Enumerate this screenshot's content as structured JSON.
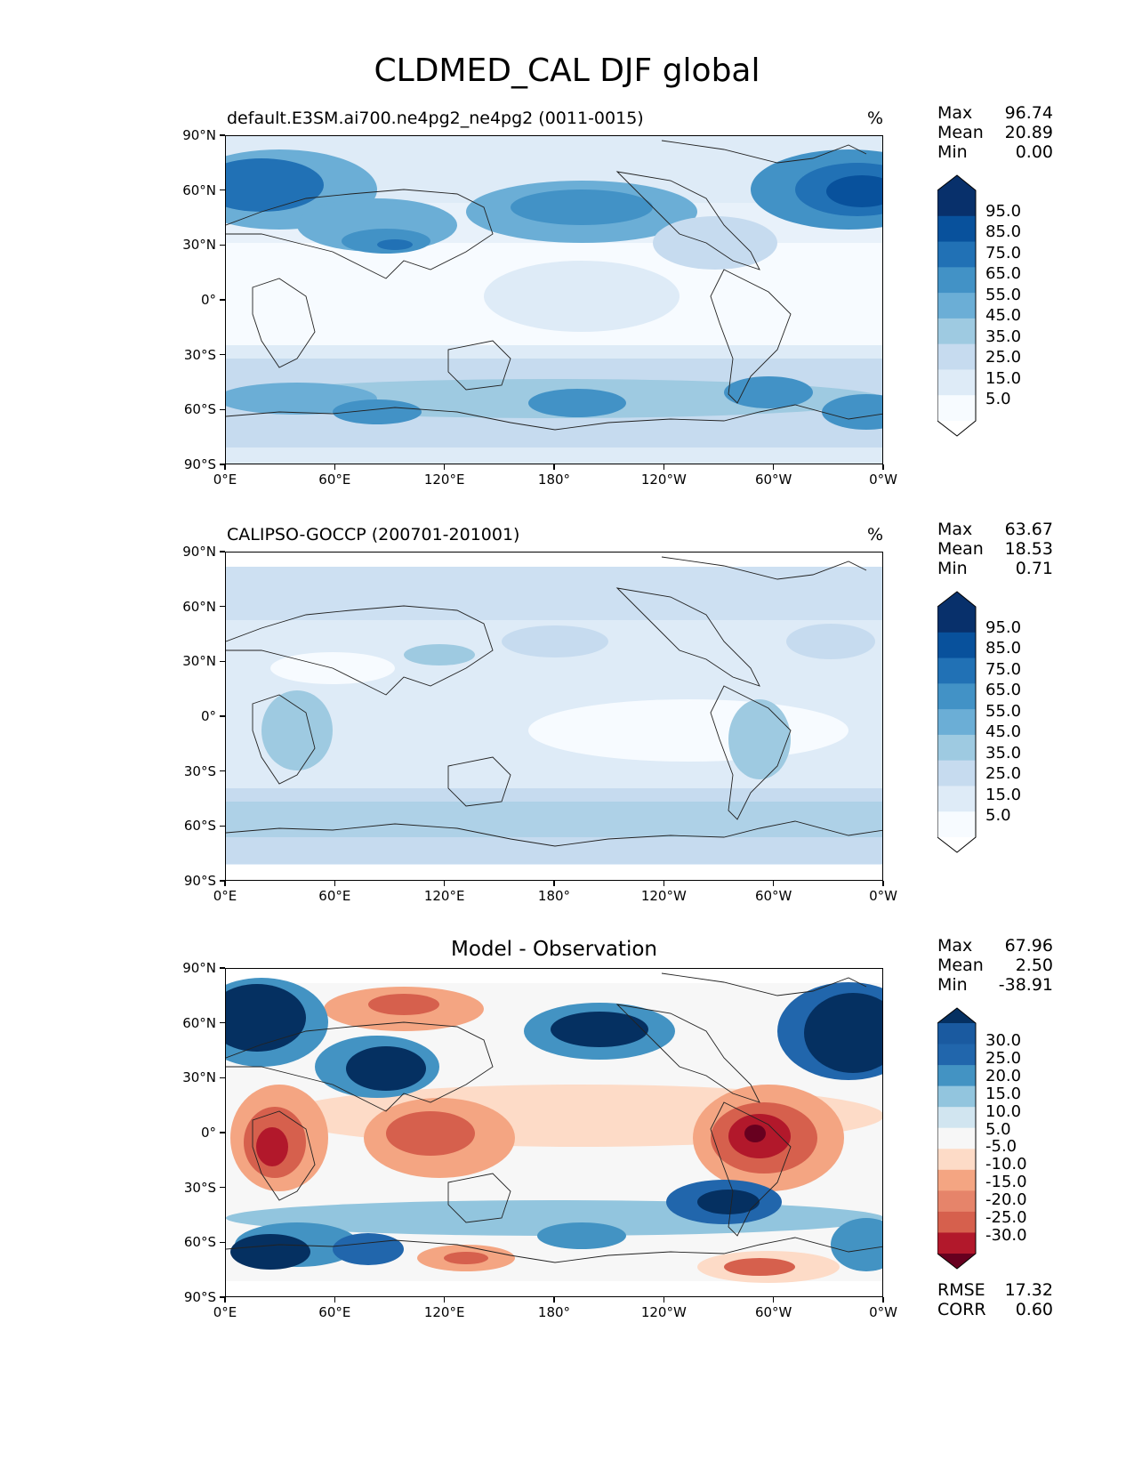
{
  "title": "CLDMED_CAL DJF global",
  "panels": [
    {
      "name": "model",
      "label": "default.E3SM.ai700.ne4pg2_ne4pg2 (0011-0015)",
      "unit": "%",
      "stats": [
        {
          "k": "Max",
          "v": "96.74"
        },
        {
          "k": "Mean",
          "v": "20.89"
        },
        {
          "k": "Min",
          "v": "0.00"
        }
      ],
      "colorbar_labels": [
        "95.0",
        "85.0",
        "75.0",
        "65.0",
        "55.0",
        "45.0",
        "35.0",
        "25.0",
        "15.0",
        "5.0"
      ]
    },
    {
      "name": "observation",
      "label": "CALIPSO-GOCCP (200701-201001)",
      "unit": "%",
      "stats": [
        {
          "k": "Max",
          "v": "63.67"
        },
        {
          "k": "Mean",
          "v": "18.53"
        },
        {
          "k": "Min",
          "v": "0.71"
        }
      ],
      "colorbar_labels": [
        "95.0",
        "85.0",
        "75.0",
        "65.0",
        "55.0",
        "45.0",
        "35.0",
        "25.0",
        "15.0",
        "5.0"
      ]
    },
    {
      "name": "difference",
      "label": "Model - Observation",
      "unit": "",
      "stats": [
        {
          "k": "Max",
          "v": "67.96"
        },
        {
          "k": "Mean",
          "v": "2.50"
        },
        {
          "k": "Min",
          "v": "-38.91"
        }
      ],
      "colorbar_labels": [
        "30.0",
        "25.0",
        "20.0",
        "15.0",
        "10.0",
        "5.0",
        "-5.0",
        "-10.0",
        "-15.0",
        "-20.0",
        "-25.0",
        "-30.0"
      ],
      "metrics": [
        {
          "k": "RMSE",
          "v": "17.32"
        },
        {
          "k": "CORR",
          "v": "0.60"
        }
      ]
    }
  ],
  "axes": {
    "lat_ticks": [
      "90°N",
      "60°N",
      "30°N",
      "0°",
      "30°S",
      "60°S",
      "90°S"
    ],
    "lon_ticks": [
      "0°E",
      "60°E",
      "120°E",
      "180°",
      "120°W",
      "60°W",
      "0°W"
    ]
  },
  "colors": {
    "seq_blues": [
      "#f7fbff",
      "#deebf7",
      "#c6dbef",
      "#9ecae1",
      "#6baed6",
      "#4292c6",
      "#2171b5",
      "#08519c",
      "#08306b"
    ],
    "diverging": [
      "#67001f",
      "#b2182b",
      "#d6604d",
      "#f4a582",
      "#fddbc7",
      "#f7f7f7",
      "#d1e5f0",
      "#92c5de",
      "#4393c3",
      "#2166ac",
      "#053061"
    ]
  }
}
